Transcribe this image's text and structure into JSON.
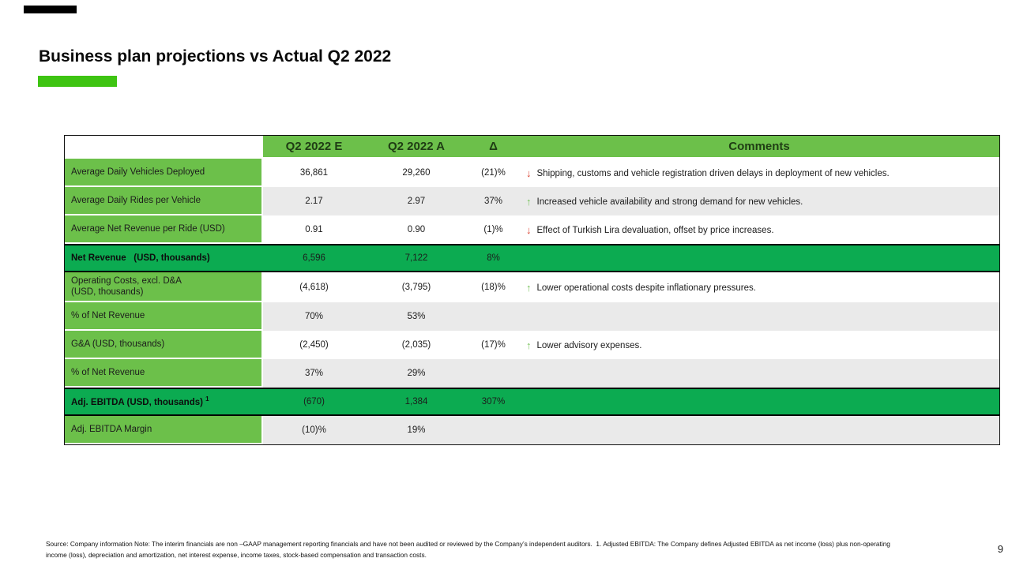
{
  "slide": {
    "title": "Business plan projections vs Actual Q2 2022",
    "page_number": "9",
    "footnote_line1": "Source: Company information Note: The interim financials are non –GAAP management reporting financials and have not been audited or reviewed by the Company’s independent auditors.  1. Adjusted EBITDA: The Company defines Adjusted EBITDA as net income (loss) plus non-operating",
    "footnote_line2": "income (loss), depreciation and amortization, net interest expense, income taxes, stock-based compensation and transaction costs."
  },
  "icons": {
    "up_arrow": "↑",
    "down_arrow": "↓"
  },
  "colors": {
    "accent_green_light": "#6cc04a",
    "accent_green_dark": "#0cab51",
    "accent_green_bright": "#3ec412",
    "alt_row_gray": "#eaeaea",
    "arrow_up_green": "#74c157",
    "arrow_down_red": "#d9402f",
    "header_text_dark_green": "#1f3d14",
    "top_bar_black": "#000000"
  },
  "table": {
    "headers": [
      "",
      "Q2 2022 E",
      "Q2 2022 A",
      "Δ",
      "Comments"
    ],
    "rows": [
      {
        "label": "Average Daily Vehicles Deployed",
        "e": "36,861",
        "a": "29,260",
        "delta": "(21)%",
        "arrow": "down",
        "comment": "Shipping, customs and vehicle registration driven delays in deployment of new vehicles.",
        "variant": "white"
      },
      {
        "label": "Average Daily Rides per Vehicle",
        "e": "2.17",
        "a": "2.97",
        "delta": "37%",
        "arrow": "up",
        "comment": "Increased vehicle availability and strong demand for new vehicles.",
        "variant": "gray"
      },
      {
        "label": "Average Net Revenue per Ride (USD)",
        "e": "0.91",
        "a": "0.90",
        "delta": "(1)%",
        "arrow": "down",
        "comment": "Effect of Turkish Lira devaluation, offset by price increases.",
        "variant": "white"
      },
      {
        "label": "Net Revenue   (USD, thousands)",
        "e": "6,596",
        "a": "7,122",
        "delta": "8%",
        "arrow": "",
        "comment": "",
        "variant": "green"
      },
      {
        "label": "Operating Costs, excl. D&A",
        "label2": "(USD, thousands)",
        "e": "(4,618)",
        "a": "(3,795)",
        "delta": "(18)%",
        "arrow": "up",
        "comment": "Lower operational costs despite inflationary pressures.",
        "variant": "white",
        "tall": true
      },
      {
        "label": "% of Net Revenue",
        "e": "70%",
        "a": "53%",
        "delta": "",
        "arrow": "",
        "comment": "",
        "variant": "gray"
      },
      {
        "label": "G&A (USD, thousands)",
        "e": "(2,450)",
        "a": "(2,035)",
        "delta": "(17)%",
        "arrow": "up",
        "comment": "Lower advisory expenses.",
        "variant": "white"
      },
      {
        "label": "% of Net Revenue",
        "e": "37%",
        "a": "29%",
        "delta": "",
        "arrow": "",
        "comment": "",
        "variant": "gray"
      },
      {
        "label": "Adj. EBITDA (USD, thousands) ",
        "sup": "1",
        "e": "(670)",
        "a": "1,384",
        "delta": "307%",
        "arrow": "",
        "comment": "",
        "variant": "green"
      },
      {
        "label": "Adj. EBITDA Margin",
        "e": "(10)%",
        "a": "19%",
        "delta": "",
        "arrow": "",
        "comment": "",
        "variant": "gray"
      }
    ]
  }
}
